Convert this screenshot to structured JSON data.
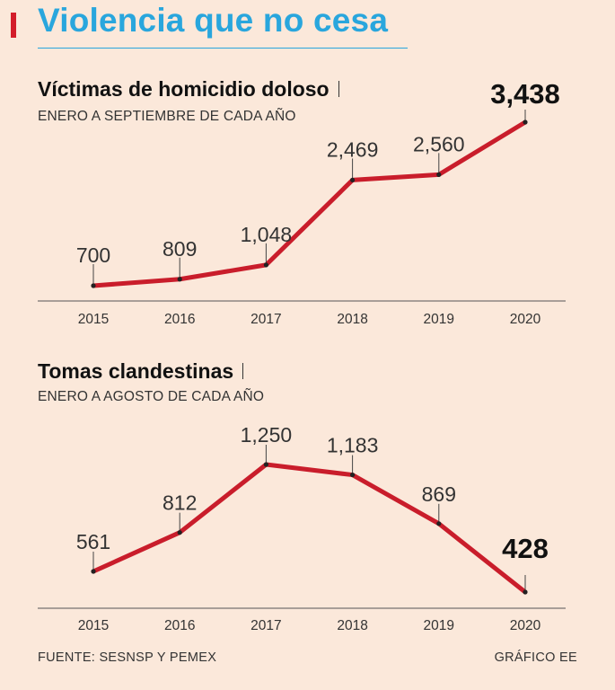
{
  "header": {
    "title": "Violencia que no cesa"
  },
  "colors": {
    "line": "#c91d2b",
    "title_accent": "#29a6dd",
    "bar": "#d31d2a",
    "background": "#fbe8da"
  },
  "chart_data": [
    {
      "type": "line",
      "title": "Víctimas de homicidio doloso",
      "subtitle": "ENERO A SEPTIEMBRE DE CADA AÑO",
      "categories": [
        "2015",
        "2016",
        "2017",
        "2018",
        "2019",
        "2020"
      ],
      "values": [
        700,
        809,
        1048,
        2469,
        2560,
        3438
      ],
      "labels": [
        "700",
        "809",
        "1,048",
        "2,469",
        "2,560",
        "3,438"
      ],
      "ylim": [
        700,
        3438
      ],
      "highlight_index": 5,
      "xlabel": "",
      "ylabel": "",
      "grid": false
    },
    {
      "type": "line",
      "title": "Tomas clandestinas",
      "subtitle": "ENERO A AGOSTO DE CADA AÑO",
      "categories": [
        "2015",
        "2016",
        "2017",
        "2018",
        "2019",
        "2020"
      ],
      "values": [
        561,
        812,
        1250,
        1183,
        869,
        428
      ],
      "labels": [
        "561",
        "812",
        "1,250",
        "1,183",
        "869",
        "428"
      ],
      "ylim": [
        428,
        1250
      ],
      "highlight_index": 5,
      "xlabel": "",
      "ylabel": "",
      "grid": false
    }
  ],
  "footer": {
    "source": "FUENTE: SESNSP Y PEMEX",
    "credit": "GRÁFICO EE"
  }
}
